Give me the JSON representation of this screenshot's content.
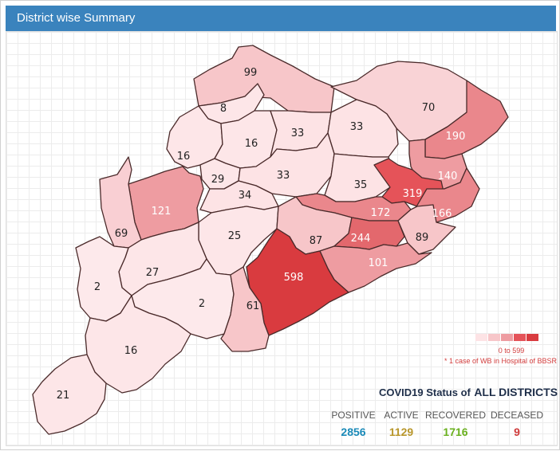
{
  "header": {
    "title": "District wise Summary"
  },
  "colors": {
    "header_bg": "#3a83bd",
    "positive": "#1a8ab8",
    "active": "#b8962a",
    "recovered": "#6ab01e",
    "deceased": "#cf3a3a",
    "legend_text": "#d23c3c"
  },
  "map": {
    "districts": [
      {
        "value": "99",
        "fill": "#f7c6c9",
        "text": "#222"
      },
      {
        "value": "8",
        "fill": "#fde6e8",
        "text": "#222"
      },
      {
        "value": "70",
        "fill": "#f9d3d6",
        "text": "#222"
      },
      {
        "value": "190",
        "fill": "#ea878c",
        "text": "#fff"
      },
      {
        "value": "16",
        "fill": "#fde6e8",
        "text": "#222"
      },
      {
        "value": "16",
        "fill": "#fde6e8",
        "text": "#222"
      },
      {
        "value": "33",
        "fill": "#fde3e5",
        "text": "#222"
      },
      {
        "value": "33",
        "fill": "#fde3e5",
        "text": "#222"
      },
      {
        "value": "29",
        "fill": "#fde6e8",
        "text": "#222"
      },
      {
        "value": "33",
        "fill": "#fde3e5",
        "text": "#222"
      },
      {
        "value": "35",
        "fill": "#fde3e5",
        "text": "#222"
      },
      {
        "value": "140",
        "fill": "#ee9ca1",
        "text": "#fff"
      },
      {
        "value": "319",
        "fill": "#e55359",
        "text": "#fff"
      },
      {
        "value": "121",
        "fill": "#ee9ca1",
        "text": "#fff"
      },
      {
        "value": "34",
        "fill": "#fde3e5",
        "text": "#222"
      },
      {
        "value": "172",
        "fill": "#ea878c",
        "text": "#fff"
      },
      {
        "value": "166",
        "fill": "#ea878c",
        "text": "#fff"
      },
      {
        "value": "69",
        "fill": "#f9cfd3",
        "text": "#222"
      },
      {
        "value": "25",
        "fill": "#fde6e8",
        "text": "#222"
      },
      {
        "value": "87",
        "fill": "#f7c6c9",
        "text": "#222"
      },
      {
        "value": "244",
        "fill": "#e3686d",
        "text": "#fff"
      },
      {
        "value": "89",
        "fill": "#f7c6c9",
        "text": "#222"
      },
      {
        "value": "101",
        "fill": "#ee9ca1",
        "text": "#fff"
      },
      {
        "value": "598",
        "fill": "#d93b3f",
        "text": "#fff"
      },
      {
        "value": "27",
        "fill": "#fde6e8",
        "text": "#222"
      },
      {
        "value": "2",
        "fill": "#fde9eb",
        "text": "#222"
      },
      {
        "value": "2",
        "fill": "#fde9eb",
        "text": "#222"
      },
      {
        "value": "61",
        "fill": "#f7c6c9",
        "text": "#222"
      },
      {
        "value": "16",
        "fill": "#fde6e8",
        "text": "#222"
      },
      {
        "value": "21",
        "fill": "#fde6e8",
        "text": "#222"
      }
    ]
  },
  "legend": {
    "swatches": [
      "#fde3e5",
      "#f7c6c9",
      "#ee9ca1",
      "#e55359",
      "#d93b3f"
    ],
    "range": "0 to 599",
    "note": "* 1 case of WB in Hospital of BBSR"
  },
  "status": {
    "title_prefix": "COVID19 Status of",
    "title_scope": "ALL DISTRICTS",
    "positive_label": "POSITIVE",
    "positive_value": "2856",
    "active_label": "ACTIVE",
    "active_value": "1129",
    "recovered_label": "RECOVERED",
    "recovered_value": "1716",
    "deceased_label": "DECEASED",
    "deceased_value": "9"
  }
}
